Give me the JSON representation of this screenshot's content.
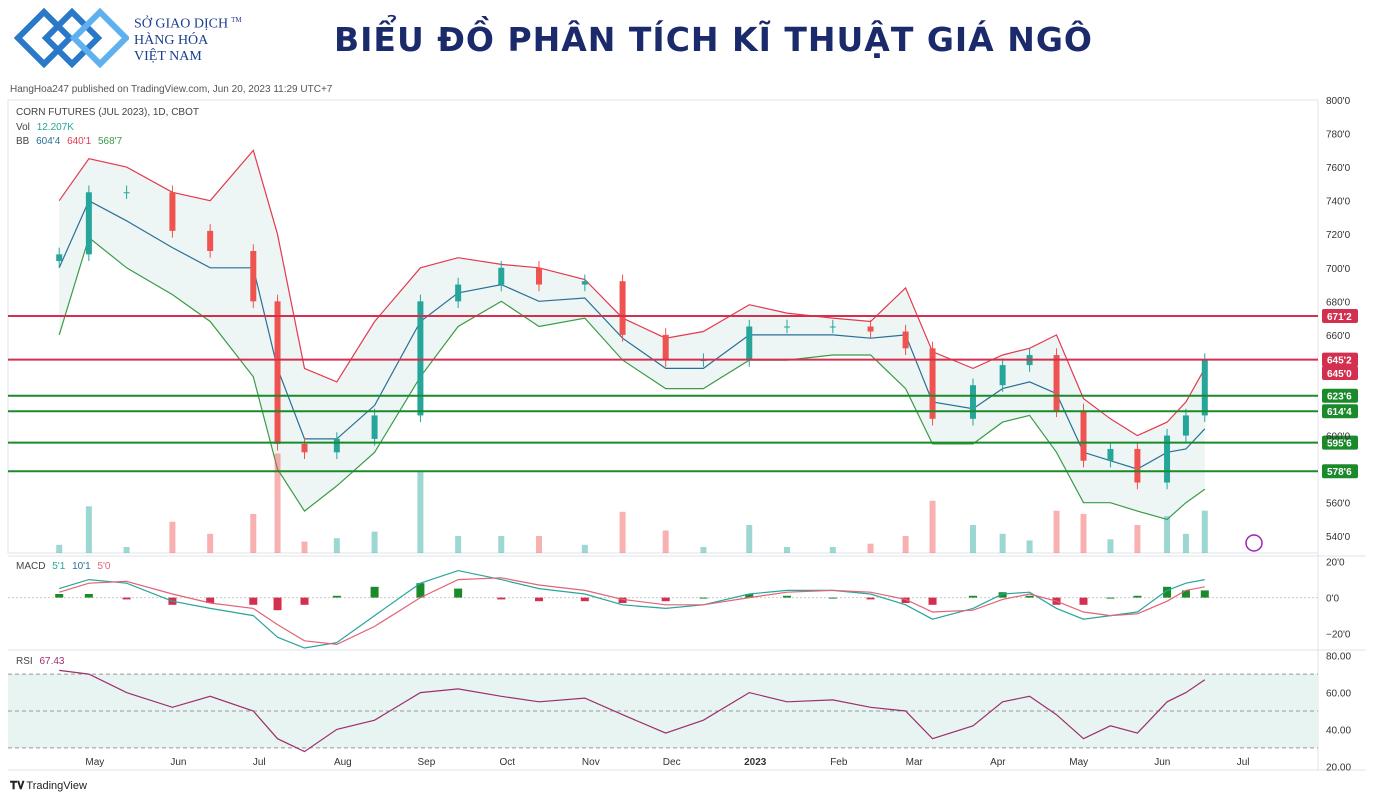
{
  "header": {
    "logo_lines": [
      "SỞ GIAO DỊCH",
      "HÀNG HÓA",
      "VIỆT NAM"
    ],
    "logo_tm": "TM",
    "title": "BIỂU ĐỒ PHÂN TÍCH KĨ THUẬT GIÁ NGÔ",
    "published": "HangHoa247 published on TradingView.com, Jun 20, 2023 11:29 UTC+7",
    "brand_color": "#1b3f8f"
  },
  "legend": {
    "symbol": "CORN FUTURES (JUL 2023), 1D, CBOT",
    "vol_label": "Vol",
    "vol_value": "12.207K",
    "bb_label": "BB",
    "bb_values": [
      "604'4",
      "640'1",
      "568'7"
    ],
    "macd_label": "MACD",
    "macd_values": [
      "5'1",
      "10'1",
      "5'0"
    ],
    "rsi_label": "RSI",
    "rsi_value": "67.43"
  },
  "footer": {
    "brand": "TradingView",
    "brand_icon": "tradingview-logo-icon"
  },
  "chart_data": {
    "type": "line",
    "instrument": "CORN FUTURES (JUL 2023), 1D, CBOT",
    "x_months": [
      "May",
      "Jun",
      "Jul",
      "Aug",
      "Sep",
      "Oct",
      "Nov",
      "Dec",
      "2023",
      "Feb",
      "Mar",
      "Apr",
      "May",
      "Jun",
      "Jul"
    ],
    "price_axis": {
      "ticks": [
        "800'0",
        "780'0",
        "760'0",
        "740'0",
        "720'0",
        "700'0",
        "680'0",
        "660'0",
        "600'0",
        "560'0",
        "540'0"
      ],
      "ylim": [
        530,
        800
      ]
    },
    "price_series": {
      "name": "Close",
      "dates": [
        "2022-04-20",
        "2022-05-01",
        "2022-05-15",
        "2022-06-01",
        "2022-06-15",
        "2022-07-01",
        "2022-07-10",
        "2022-07-20",
        "2022-08-01",
        "2022-08-15",
        "2022-09-01",
        "2022-09-15",
        "2022-10-01",
        "2022-10-15",
        "2022-11-01",
        "2022-11-15",
        "2022-12-01",
        "2022-12-15",
        "2023-01-01",
        "2023-01-15",
        "2023-02-01",
        "2023-02-15",
        "2023-02-28",
        "2023-03-10",
        "2023-03-25",
        "2023-04-05",
        "2023-04-15",
        "2023-04-25",
        "2023-05-05",
        "2023-05-15",
        "2023-05-25",
        "2023-06-05",
        "2023-06-12",
        "2023-06-19"
      ],
      "values": [
        708,
        745,
        745,
        722,
        710,
        680,
        595,
        590,
        598,
        612,
        680,
        690,
        700,
        690,
        692,
        660,
        645,
        645,
        665,
        665,
        665,
        662,
        652,
        610,
        630,
        642,
        648,
        615,
        585,
        592,
        572,
        600,
        612,
        645
      ]
    },
    "bollinger": {
      "labels": [
        "BB",
        "604'4",
        "640'1",
        "568'7"
      ],
      "upper": [
        740,
        765,
        760,
        745,
        740,
        770,
        720,
        640,
        632,
        668,
        700,
        706,
        702,
        700,
        693,
        670,
        658,
        662,
        678,
        673,
        670,
        668,
        688,
        650,
        640,
        648,
        652,
        660,
        622,
        610,
        600,
        608,
        620,
        640
      ],
      "lower": [
        660,
        718,
        700,
        684,
        668,
        635,
        580,
        555,
        570,
        590,
        635,
        665,
        680,
        665,
        670,
        645,
        628,
        628,
        645,
        645,
        648,
        648,
        628,
        595,
        595,
        608,
        612,
        590,
        560,
        560,
        555,
        550,
        560,
        568
      ],
      "mid": [
        700,
        740,
        728,
        712,
        700,
        700,
        640,
        598,
        598,
        618,
        668,
        685,
        690,
        680,
        682,
        658,
        640,
        640,
        660,
        660,
        660,
        658,
        660,
        620,
        616,
        628,
        632,
        625,
        590,
        585,
        580,
        590,
        592,
        604
      ]
    },
    "horizontal_levels": [
      {
        "label": "671'2",
        "value": 671.25,
        "color": "#d32f4f"
      },
      {
        "label": "645'2",
        "value": 645.25,
        "color": "#d32f4f"
      },
      {
        "label": "645'0",
        "value": 645.0,
        "color": "#d32f4f"
      },
      {
        "label": "623'6",
        "value": 623.75,
        "color": "#1b8a2a"
      },
      {
        "label": "614'4",
        "value": 614.5,
        "color": "#1b8a2a"
      },
      {
        "label": "595'6",
        "value": 595.75,
        "color": "#1b8a2a"
      },
      {
        "label": "578'6",
        "value": 578.75,
        "color": "#1b8a2a"
      }
    ],
    "macd": {
      "ticks": [
        "20'0",
        "0'0",
        "−20'0"
      ],
      "ylim": [
        -28,
        22
      ],
      "macd_line": [
        5,
        10,
        8,
        -2,
        -6,
        -10,
        -22,
        -28,
        -25,
        -10,
        8,
        15,
        10,
        5,
        2,
        -4,
        -6,
        -4,
        2,
        4,
        4,
        2,
        -4,
        -12,
        -6,
        2,
        3,
        -6,
        -12,
        -10,
        -8,
        4,
        8,
        10
      ],
      "signal_line": [
        3,
        8,
        9,
        2,
        -3,
        -6,
        -15,
        -24,
        -26,
        -16,
        0,
        10,
        11,
        7,
        4,
        -1,
        -4,
        -4,
        0,
        3,
        4,
        3,
        -1,
        -8,
        -7,
        -1,
        2,
        -2,
        -8,
        -10,
        -9,
        -2,
        4,
        6
      ]
    },
    "rsi": {
      "ticks": [
        "80.00",
        "60.00",
        "40.00",
        "20.00"
      ],
      "ylim": [
        18,
        82
      ],
      "bands": [
        70,
        50,
        30
      ],
      "values": [
        72,
        70,
        60,
        52,
        58,
        50,
        35,
        28,
        40,
        45,
        60,
        62,
        58,
        55,
        57,
        48,
        38,
        45,
        60,
        55,
        56,
        52,
        50,
        35,
        42,
        55,
        58,
        48,
        35,
        42,
        38,
        55,
        60,
        67
      ]
    },
    "colors": {
      "up": "#26a69a",
      "down": "#ef5350",
      "bb_upper": "#e53950",
      "bb_lower": "#3b9b47",
      "bb_mid": "#2a6f97",
      "rsi": "#9c2f6e",
      "macd": "#26a69a",
      "signal": "#e06478"
    }
  }
}
